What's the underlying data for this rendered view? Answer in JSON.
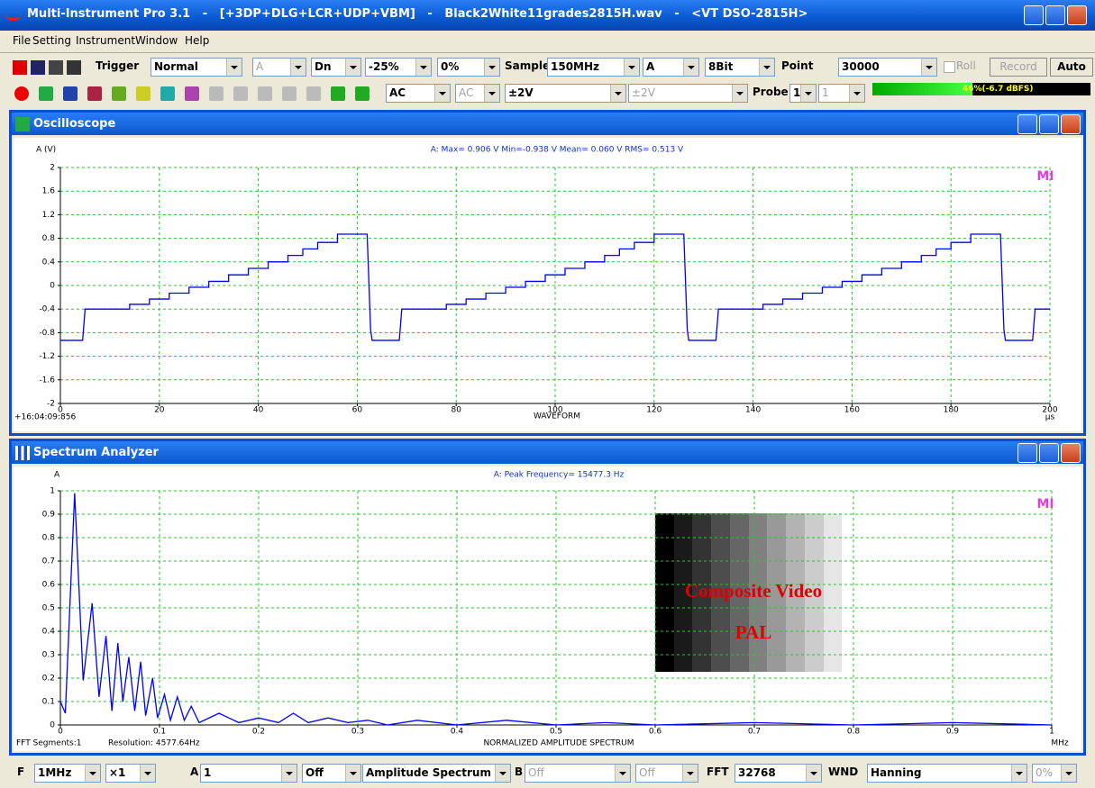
{
  "window": {
    "title": "Multi-Instrument Pro 3.1   -   [+3DP+DLG+LCR+UDP+VBM]   -   Black2White11grades2815H.wav   -   <VT DSO-2815H>"
  },
  "menu": [
    "File",
    "Setting",
    "Instrument",
    "Window",
    "Help"
  ],
  "toolbar_1": {
    "trigger_label": "Trigger",
    "trigger_mode": "Normal",
    "trigger_channel": "A",
    "trigger_edge": "Dn",
    "trigger_position": "-25%",
    "trigger_level": "0%",
    "sample_label": "Sample",
    "sample_rate": "150MHz",
    "sample_channel": "A",
    "bit_depth": "8Bit",
    "point_label": "Point",
    "points": "30000",
    "roll": "Roll",
    "record": "Record",
    "auto": "Auto"
  },
  "toolbar_2": {
    "coupling_a": "AC",
    "coupling_b": "AC",
    "range_a": "±2V",
    "range_b": "±2V",
    "probe_label": "Probe",
    "probe_a": "1",
    "probe_b": "1",
    "level_meter": "46%(-6.7 dBFS)"
  },
  "bottom_bar": {
    "f_label": "F",
    "frequency_range": "1MHz",
    "zoom": "×1",
    "a_label": "A",
    "a_setting": "1",
    "a_mode": "Off",
    "spectrum_type": "Amplitude Spectrum",
    "b_label": "B",
    "b_setting": "Off",
    "b_mode": "Off",
    "fft_label": "FFT",
    "fft_size": "32768",
    "wnd_label": "WND",
    "window_function": "Hanning",
    "overlap": "0%"
  },
  "chart_data": [
    {
      "type": "line",
      "window_title": "Oscilloscope",
      "y_label": "A (V)",
      "stats": "A: Max= 0.906 V  Min=-0.938 V  Mean= 0.060 V  RMS= 0.513 V",
      "x_label": "WAVEFORM",
      "x_unit": "µs",
      "timestamp": "+16:04:09:856",
      "logo": "MI",
      "color": "#0000ff",
      "grid": true,
      "xlim": [
        0,
        200
      ],
      "xticks": [
        0,
        20,
        40,
        60,
        80,
        100,
        120,
        140,
        160,
        180,
        200
      ],
      "ylim": [
        -2,
        2
      ],
      "yticks": [
        -2,
        -1.6,
        -1.2,
        -0.8,
        -0.4,
        0,
        0.4,
        0.8,
        1.2,
        1.6,
        2
      ],
      "x": [
        0,
        4.5,
        5,
        14,
        14,
        18,
        18,
        22,
        22,
        26,
        26,
        30,
        30,
        34,
        34,
        38,
        38,
        42,
        42,
        46,
        46,
        49,
        49,
        52,
        52,
        56,
        56,
        62,
        62.7,
        63,
        68.5,
        69,
        78,
        78,
        82,
        82,
        86,
        86,
        90,
        90,
        94,
        94,
        98,
        98,
        102,
        102,
        106,
        106,
        110,
        110,
        113,
        113,
        116,
        116,
        120,
        120,
        126,
        126.7,
        127,
        132.5,
        133,
        142,
        142,
        146,
        146,
        150,
        150,
        154,
        154,
        158,
        158,
        162,
        162,
        166,
        166,
        170,
        170,
        174,
        174,
        177,
        177,
        180,
        180,
        184,
        184,
        190,
        190.7,
        191,
        196.5,
        197,
        200
      ],
      "values": [
        -0.93,
        -0.93,
        -0.4,
        -0.4,
        -0.32,
        -0.32,
        -0.23,
        -0.23,
        -0.13,
        -0.13,
        -0.03,
        -0.03,
        0.07,
        0.07,
        0.18,
        0.18,
        0.29,
        0.29,
        0.4,
        0.4,
        0.51,
        0.51,
        0.62,
        0.62,
        0.73,
        0.73,
        0.87,
        0.87,
        -0.75,
        -0.93,
        -0.93,
        -0.4,
        -0.4,
        -0.32,
        -0.32,
        -0.23,
        -0.23,
        -0.13,
        -0.13,
        -0.03,
        -0.03,
        0.07,
        0.07,
        0.18,
        0.18,
        0.29,
        0.29,
        0.4,
        0.4,
        0.51,
        0.51,
        0.62,
        0.62,
        0.73,
        0.73,
        0.87,
        0.87,
        -0.75,
        -0.93,
        -0.93,
        -0.4,
        -0.4,
        -0.32,
        -0.32,
        -0.23,
        -0.23,
        -0.13,
        -0.13,
        -0.03,
        -0.03,
        0.07,
        0.07,
        0.18,
        0.18,
        0.29,
        0.29,
        0.4,
        0.4,
        0.51,
        0.51,
        0.62,
        0.62,
        0.73,
        0.73,
        0.87,
        0.87,
        -0.75,
        -0.93,
        -0.93,
        -0.4,
        -0.4
      ]
    },
    {
      "type": "line",
      "window_title": "Spectrum Analyzer",
      "y_label": "A",
      "peak": "A: Peak Frequency= 15477.3 Hz",
      "x_label": "NORMALIZED AMPLITUDE SPECTRUM",
      "x_unit": "MHz",
      "fft_segments": "FFT Segments:1",
      "resolution": "Resolution: 4577.64Hz",
      "logo": "MI",
      "inset_title": "Composite Video",
      "inset_subtitle": "PAL",
      "color": "#0000ff",
      "grid": true,
      "xlim": [
        0,
        1
      ],
      "xticks": [
        0,
        0.1,
        0.2,
        0.3,
        0.4,
        0.5,
        0.6,
        0.7,
        0.8,
        0.9,
        1
      ],
      "ylim": [
        0,
        1
      ],
      "yticks": [
        0,
        0.1,
        0.2,
        0.3,
        0.4,
        0.5,
        0.6,
        0.7,
        0.8,
        0.9,
        1
      ],
      "x": [
        0,
        0.005,
        0.0144,
        0.023,
        0.032,
        0.039,
        0.046,
        0.052,
        0.058,
        0.063,
        0.069,
        0.075,
        0.081,
        0.086,
        0.093,
        0.098,
        0.105,
        0.111,
        0.118,
        0.125,
        0.132,
        0.14,
        0.16,
        0.18,
        0.2,
        0.22,
        0.235,
        0.25,
        0.27,
        0.29,
        0.31,
        0.33,
        0.36,
        0.4,
        0.45,
        0.5,
        0.55,
        0.6,
        0.7,
        0.8,
        0.9,
        1
      ],
      "values": [
        0.1,
        0.05,
        0.99,
        0.19,
        0.52,
        0.12,
        0.38,
        0.06,
        0.35,
        0.1,
        0.29,
        0.06,
        0.27,
        0.04,
        0.2,
        0.03,
        0.13,
        0.02,
        0.12,
        0.02,
        0.08,
        0.01,
        0.05,
        0.01,
        0.03,
        0.01,
        0.05,
        0.01,
        0.03,
        0.01,
        0.02,
        0,
        0.02,
        0,
        0.02,
        0,
        0.01,
        0,
        0.01,
        0,
        0.01,
        0
      ]
    }
  ]
}
